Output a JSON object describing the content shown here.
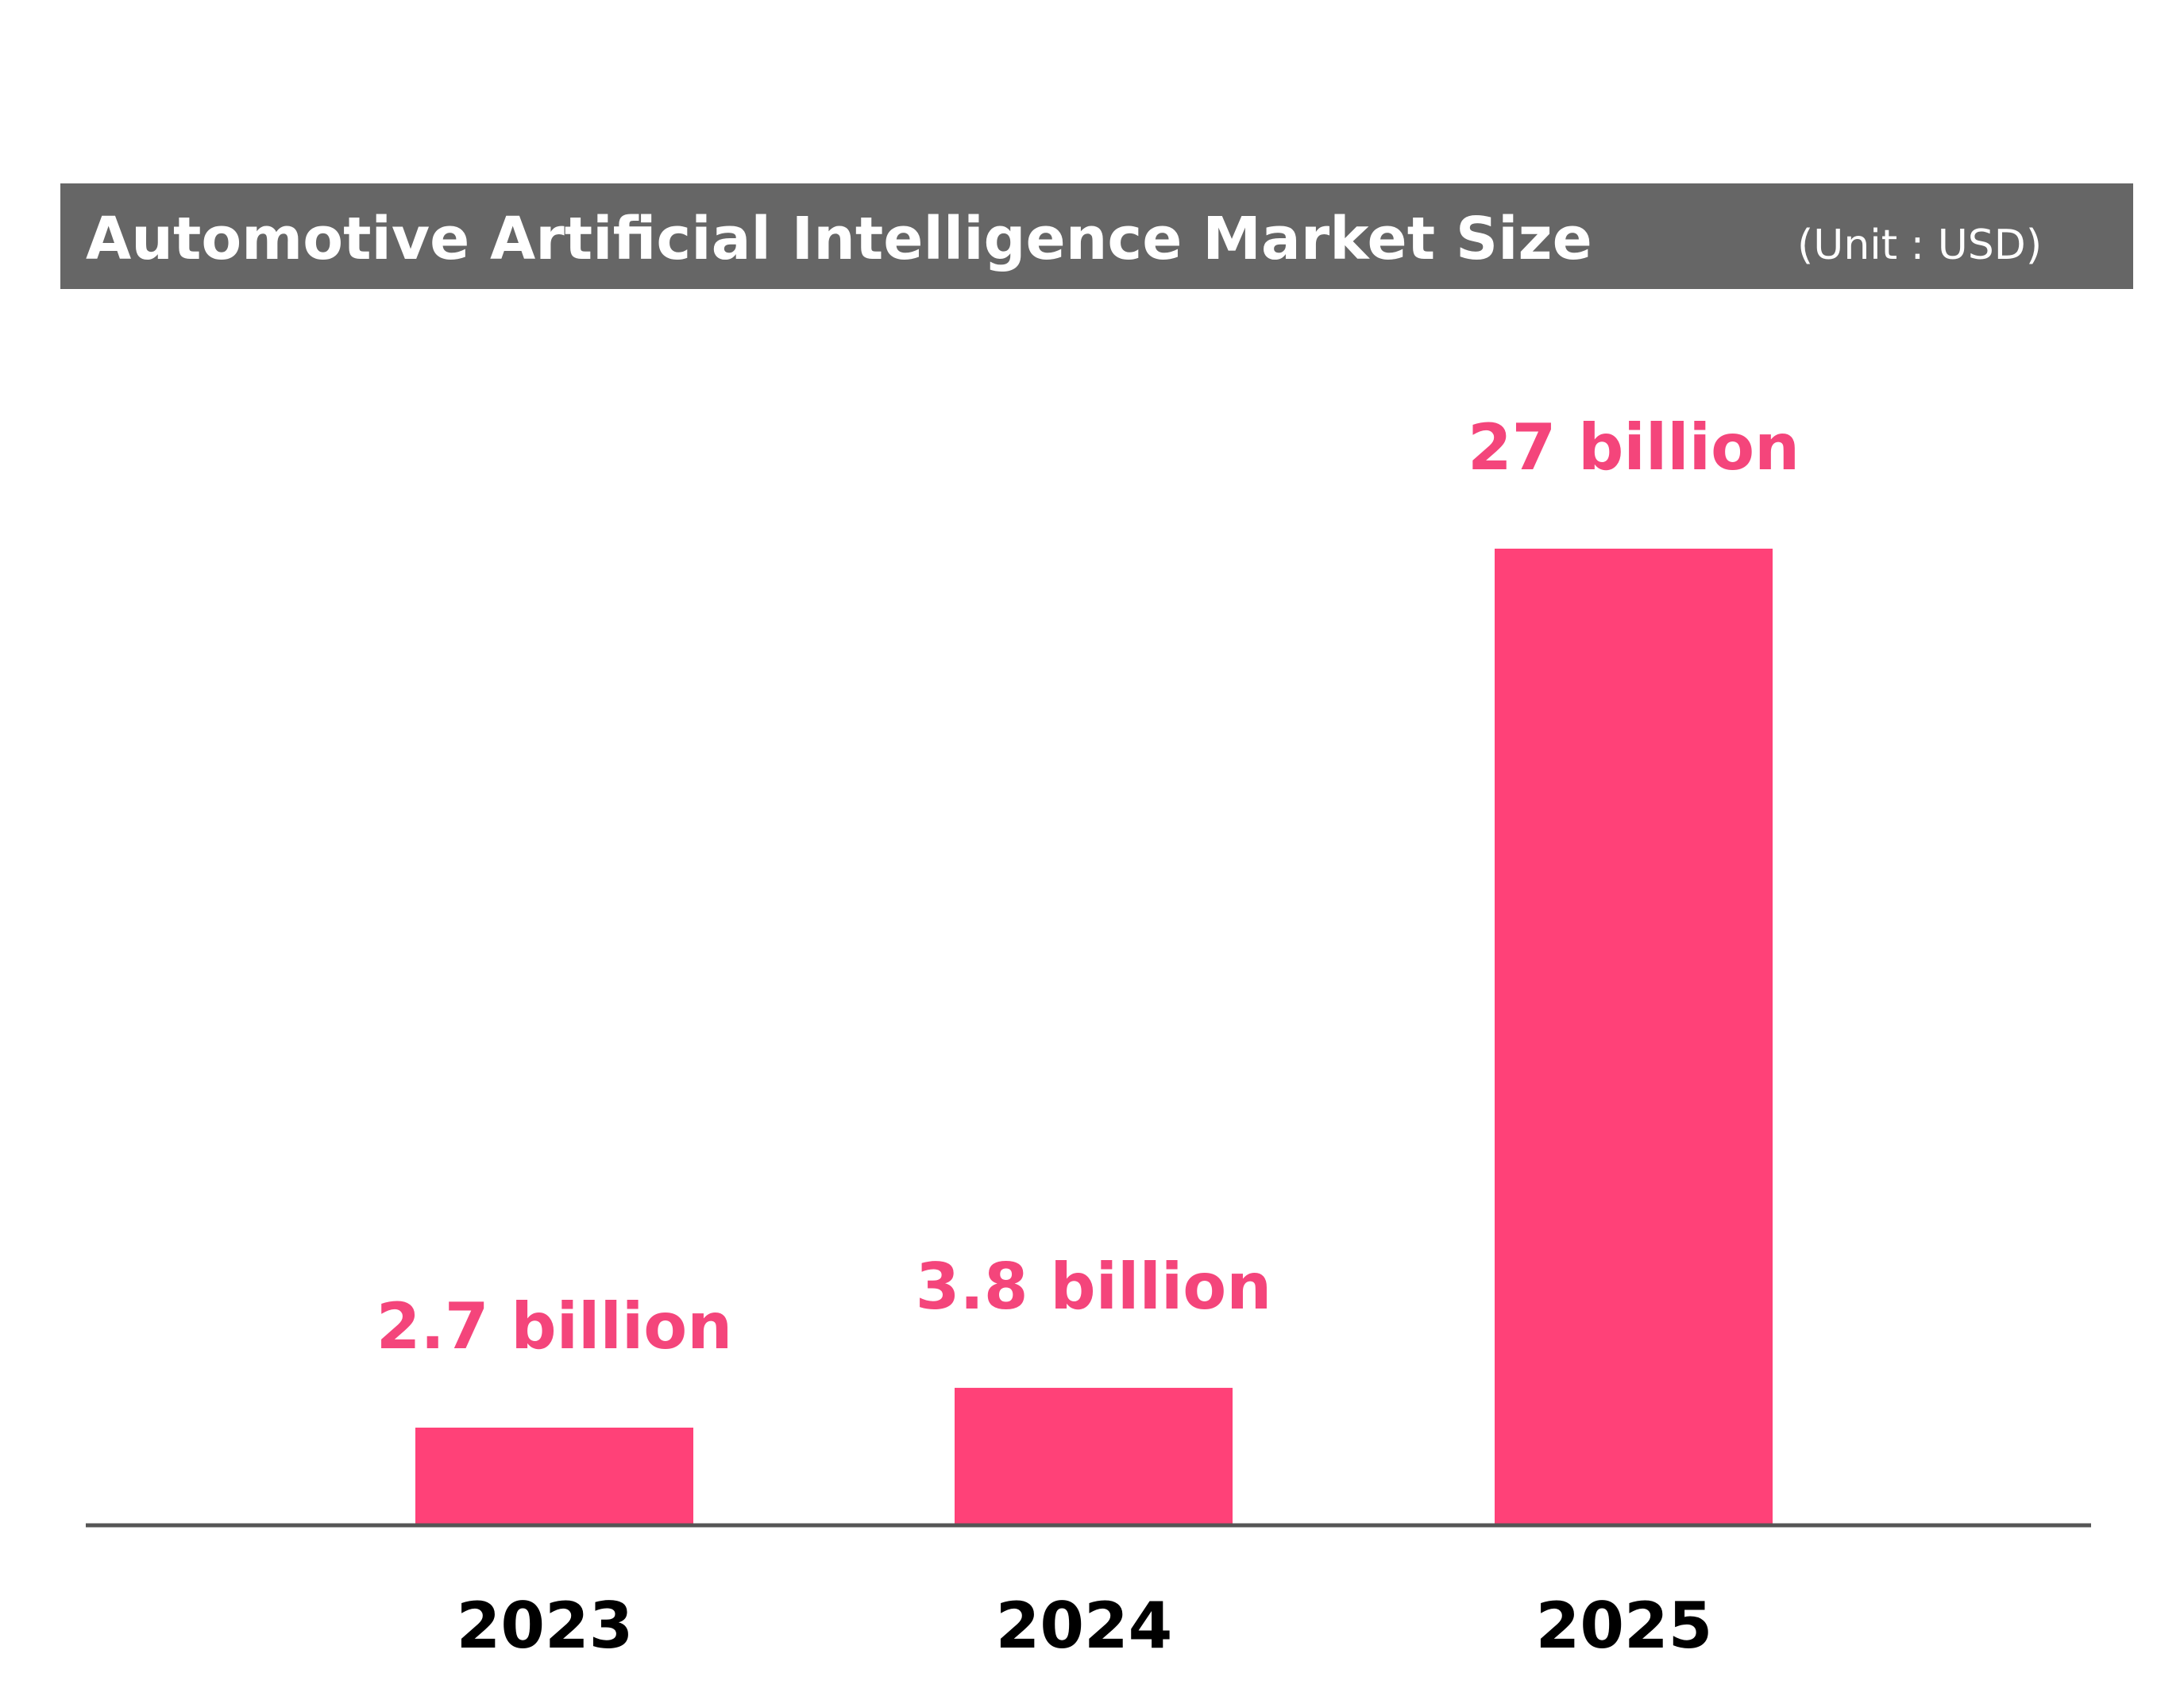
{
  "chart_data": {
    "type": "bar",
    "title": "Automotive Artificial Intelligence Market Size",
    "unit_note": "(Unit : USD)",
    "categories": [
      "2023",
      "2024",
      "2025"
    ],
    "values": [
      2.7,
      3.8,
      27
    ],
    "data_labels": [
      "2.7 billion",
      "3.8 billion",
      "27 billion"
    ],
    "ylim": [
      0,
      30
    ],
    "grid": false,
    "legend": "none",
    "colors": {
      "bar": "#ff4178",
      "label": "#f4457b",
      "title_bar": "#666666",
      "axis": "#555555"
    }
  }
}
